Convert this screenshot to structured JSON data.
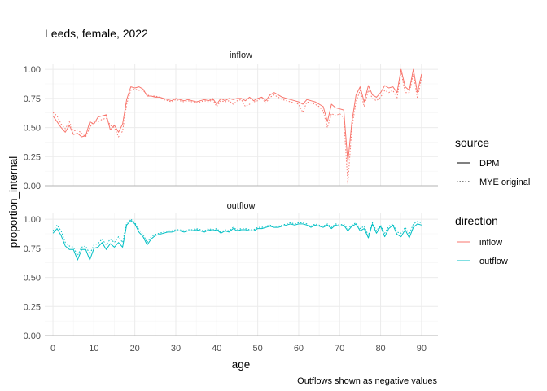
{
  "chart_data": {
    "type": "line",
    "title": "Leeds, female, 2022",
    "xlabel": "age",
    "ylabel": "proportion_internal",
    "caption": "Outflows shown as negative values",
    "xlim": [
      -2,
      94
    ],
    "ylim": [
      0,
      1.05
    ],
    "x_ticks": [
      0,
      10,
      20,
      30,
      40,
      50,
      60,
      70,
      80,
      90
    ],
    "y_ticks": [
      0.0,
      0.25,
      0.5,
      0.75,
      1.0
    ],
    "x_tick_labels": [
      "0",
      "10",
      "20",
      "30",
      "40",
      "50",
      "60",
      "70",
      "80",
      "90"
    ],
    "y_tick_labels": [
      "0.00",
      "0.25",
      "0.50",
      "0.75",
      "1.00"
    ],
    "grid": true,
    "legend_placement": "right",
    "legends": {
      "source": {
        "title": "source",
        "items": [
          {
            "label": "DPM",
            "dash": "solid"
          },
          {
            "label": "MYE original",
            "dash": "dotted"
          }
        ]
      },
      "direction": {
        "title": "direction",
        "items": [
          {
            "label": "inflow",
            "color": "#F8766D"
          },
          {
            "label": "outflow",
            "color": "#00BFC4"
          }
        ]
      }
    },
    "colors": {
      "inflow": "#F8766D",
      "outflow": "#00BFC4"
    },
    "facets": [
      {
        "label": "inflow",
        "color": "#F8766D",
        "series": [
          {
            "name": "DPM",
            "dash": "solid",
            "x": [
              0,
              1,
              2,
              3,
              4,
              5,
              6,
              7,
              8,
              9,
              10,
              11,
              12,
              13,
              14,
              15,
              16,
              17,
              18,
              19,
              20,
              21,
              22,
              23,
              24,
              25,
              26,
              27,
              28,
              29,
              30,
              31,
              32,
              33,
              34,
              35,
              36,
              37,
              38,
              39,
              40,
              41,
              42,
              43,
              44,
              45,
              46,
              47,
              48,
              49,
              50,
              51,
              52,
              53,
              54,
              55,
              56,
              57,
              58,
              59,
              60,
              61,
              62,
              63,
              64,
              65,
              66,
              67,
              68,
              69,
              70,
              71,
              72,
              73,
              74,
              75,
              76,
              77,
              78,
              79,
              80,
              81,
              82,
              83,
              84,
              85,
              86,
              87,
              88,
              89,
              90
            ],
            "y": [
              0.6,
              0.55,
              0.5,
              0.46,
              0.52,
              0.44,
              0.45,
              0.42,
              0.43,
              0.55,
              0.53,
              0.59,
              0.6,
              0.61,
              0.48,
              0.52,
              0.46,
              0.53,
              0.74,
              0.85,
              0.84,
              0.85,
              0.83,
              0.77,
              0.77,
              0.76,
              0.76,
              0.75,
              0.74,
              0.73,
              0.75,
              0.74,
              0.73,
              0.74,
              0.73,
              0.72,
              0.73,
              0.74,
              0.73,
              0.75,
              0.7,
              0.75,
              0.73,
              0.75,
              0.74,
              0.75,
              0.75,
              0.73,
              0.76,
              0.73,
              0.75,
              0.76,
              0.73,
              0.78,
              0.8,
              0.78,
              0.76,
              0.75,
              0.74,
              0.73,
              0.72,
              0.7,
              0.74,
              0.73,
              0.72,
              0.7,
              0.68,
              0.55,
              0.7,
              0.67,
              0.66,
              0.65,
              0.2,
              0.55,
              0.78,
              0.85,
              0.72,
              0.86,
              0.78,
              0.76,
              0.8,
              0.86,
              0.84,
              0.85,
              0.8,
              1.0,
              0.85,
              0.82,
              1.0,
              0.8,
              0.96
            ]
          },
          {
            "name": "MYE original",
            "dash": "dotted",
            "x": [
              0,
              1,
              2,
              3,
              4,
              5,
              6,
              7,
              8,
              9,
              10,
              11,
              12,
              13,
              14,
              15,
              16,
              17,
              18,
              19,
              20,
              21,
              22,
              23,
              24,
              25,
              26,
              27,
              28,
              29,
              30,
              31,
              32,
              33,
              34,
              35,
              36,
              37,
              38,
              39,
              40,
              41,
              42,
              43,
              44,
              45,
              46,
              47,
              48,
              49,
              50,
              51,
              52,
              53,
              54,
              55,
              56,
              57,
              58,
              59,
              60,
              61,
              62,
              63,
              64,
              65,
              66,
              67,
              68,
              69,
              70,
              71,
              72,
              73,
              74,
              75,
              76,
              77,
              78,
              79,
              80,
              81,
              82,
              83,
              84,
              85,
              86,
              87,
              88,
              89,
              90
            ],
            "y": [
              0.63,
              0.6,
              0.53,
              0.49,
              0.55,
              0.47,
              0.48,
              0.45,
              0.42,
              0.5,
              0.56,
              0.55,
              0.57,
              0.58,
              0.52,
              0.5,
              0.42,
              0.47,
              0.7,
              0.82,
              0.83,
              0.82,
              0.82,
              0.78,
              0.77,
              0.77,
              0.76,
              0.74,
              0.73,
              0.72,
              0.74,
              0.73,
              0.72,
              0.73,
              0.72,
              0.71,
              0.72,
              0.73,
              0.72,
              0.74,
              0.68,
              0.73,
              0.72,
              0.73,
              0.7,
              0.73,
              0.74,
              0.68,
              0.7,
              0.72,
              0.73,
              0.75,
              0.71,
              0.76,
              0.78,
              0.76,
              0.74,
              0.73,
              0.72,
              0.71,
              0.7,
              0.63,
              0.72,
              0.71,
              0.7,
              0.68,
              0.64,
              0.5,
              0.62,
              0.6,
              0.62,
              0.58,
              0.02,
              0.5,
              0.72,
              0.82,
              0.68,
              0.82,
              0.75,
              0.73,
              0.76,
              0.82,
              0.8,
              0.82,
              0.75,
              0.98,
              0.8,
              0.8,
              0.96,
              0.75,
              0.93
            ]
          }
        ]
      },
      {
        "label": "outflow",
        "color": "#00BFC4",
        "series": [
          {
            "name": "DPM",
            "dash": "solid",
            "x": [
              0,
              1,
              2,
              3,
              4,
              5,
              6,
              7,
              8,
              9,
              10,
              11,
              12,
              13,
              14,
              15,
              16,
              17,
              18,
              19,
              20,
              21,
              22,
              23,
              24,
              25,
              26,
              27,
              28,
              29,
              30,
              31,
              32,
              33,
              34,
              35,
              36,
              37,
              38,
              39,
              40,
              41,
              42,
              43,
              44,
              45,
              46,
              47,
              48,
              49,
              50,
              51,
              52,
              53,
              54,
              55,
              56,
              57,
              58,
              59,
              60,
              61,
              62,
              63,
              64,
              65,
              66,
              67,
              68,
              69,
              70,
              71,
              72,
              73,
              74,
              75,
              76,
              77,
              78,
              79,
              80,
              81,
              82,
              83,
              84,
              85,
              86,
              87,
              88,
              89,
              90
            ],
            "y": [
              0.88,
              0.92,
              0.86,
              0.77,
              0.74,
              0.74,
              0.65,
              0.74,
              0.74,
              0.65,
              0.75,
              0.76,
              0.8,
              0.74,
              0.79,
              0.76,
              0.8,
              0.76,
              0.95,
              0.99,
              0.96,
              0.89,
              0.85,
              0.78,
              0.83,
              0.86,
              0.87,
              0.88,
              0.89,
              0.89,
              0.9,
              0.9,
              0.89,
              0.9,
              0.9,
              0.91,
              0.9,
              0.89,
              0.91,
              0.9,
              0.91,
              0.88,
              0.9,
              0.89,
              0.92,
              0.9,
              0.91,
              0.91,
              0.9,
              0.9,
              0.92,
              0.92,
              0.93,
              0.94,
              0.93,
              0.93,
              0.94,
              0.95,
              0.96,
              0.95,
              0.96,
              0.96,
              0.95,
              0.93,
              0.95,
              0.94,
              0.93,
              0.95,
              0.92,
              0.95,
              0.94,
              0.95,
              0.9,
              0.94,
              0.96,
              0.9,
              0.92,
              0.84,
              0.96,
              0.88,
              0.94,
              0.85,
              0.92,
              0.95,
              0.87,
              0.85,
              0.91,
              0.84,
              0.93,
              0.96,
              0.95
            ]
          },
          {
            "name": "MYE original",
            "dash": "dotted",
            "x": [
              0,
              1,
              2,
              3,
              4,
              5,
              6,
              7,
              8,
              9,
              10,
              11,
              12,
              13,
              14,
              15,
              16,
              17,
              18,
              19,
              20,
              21,
              22,
              23,
              24,
              25,
              26,
              27,
              28,
              29,
              30,
              31,
              32,
              33,
              34,
              35,
              36,
              37,
              38,
              39,
              40,
              41,
              42,
              43,
              44,
              45,
              46,
              47,
              48,
              49,
              50,
              51,
              52,
              53,
              54,
              55,
              56,
              57,
              58,
              59,
              60,
              61,
              62,
              63,
              64,
              65,
              66,
              67,
              68,
              69,
              70,
              71,
              72,
              73,
              74,
              75,
              76,
              77,
              78,
              79,
              80,
              81,
              82,
              83,
              84,
              85,
              86,
              87,
              88,
              89,
              90
            ],
            "y": [
              0.9,
              0.95,
              0.9,
              0.8,
              0.77,
              0.76,
              0.69,
              0.76,
              0.77,
              0.7,
              0.78,
              0.79,
              0.83,
              0.78,
              0.83,
              0.8,
              0.85,
              0.8,
              0.97,
              1.0,
              0.97,
              0.91,
              0.87,
              0.8,
              0.85,
              0.87,
              0.88,
              0.89,
              0.9,
              0.9,
              0.91,
              0.91,
              0.9,
              0.91,
              0.91,
              0.92,
              0.91,
              0.9,
              0.92,
              0.91,
              0.92,
              0.89,
              0.91,
              0.9,
              0.93,
              0.91,
              0.92,
              0.92,
              0.91,
              0.91,
              0.93,
              0.93,
              0.94,
              0.95,
              0.94,
              0.94,
              0.95,
              0.96,
              0.97,
              0.96,
              0.97,
              0.97,
              0.96,
              0.94,
              0.96,
              0.95,
              0.94,
              0.96,
              0.93,
              0.96,
              0.95,
              0.96,
              0.92,
              0.95,
              0.97,
              0.92,
              0.94,
              0.86,
              0.97,
              0.9,
              0.95,
              0.88,
              0.94,
              0.96,
              0.89,
              0.88,
              0.93,
              0.87,
              0.96,
              0.98,
              0.97
            ]
          }
        ]
      }
    ]
  }
}
